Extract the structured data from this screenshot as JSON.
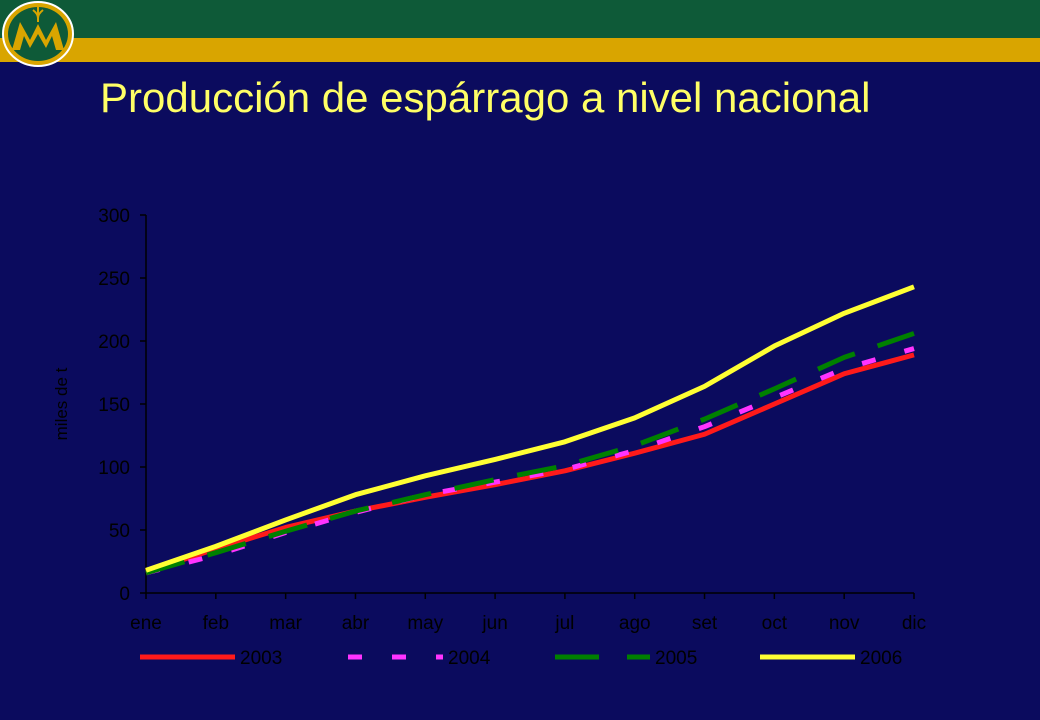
{
  "header": {
    "title": "Producción de espárrago a nivel nacional",
    "logo": "wheat-logo-icon",
    "colors": {
      "band_top": "#0e5a38",
      "band_gold": "#d9a500",
      "background": "#0b0b5e",
      "title": "#ffff66"
    }
  },
  "chart_data": {
    "type": "line",
    "categories": [
      "ene",
      "feb",
      "mar",
      "abr",
      "may",
      "jun",
      "jul",
      "ago",
      "set",
      "oct",
      "nov",
      "dic"
    ],
    "ylabel": "miles de t",
    "ylim": [
      0,
      300
    ],
    "yticks": [
      "0",
      "50",
      "100",
      "150",
      "200",
      "250",
      "300"
    ],
    "grid": false,
    "legend_position": "bottom",
    "series": [
      {
        "name": "2003",
        "color": "#ff1a1a",
        "style": "solid",
        "values": [
          17,
          35,
          52,
          65,
          76,
          86,
          97,
          111,
          126,
          150,
          174,
          189
        ]
      },
      {
        "name": "2004",
        "color": "#ff33ff",
        "style": "dashed",
        "values": [
          16,
          30,
          48,
          64,
          78,
          88,
          98,
          113,
          132,
          155,
          178,
          194
        ]
      },
      {
        "name": "2005",
        "color": "#008000",
        "style": "dashed",
        "values": [
          16,
          32,
          49,
          65,
          78,
          90,
          101,
          117,
          138,
          162,
          187,
          206
        ]
      },
      {
        "name": "2006",
        "color": "#ffff33",
        "style": "solid",
        "values": [
          18,
          37,
          58,
          78,
          93,
          106,
          120,
          139,
          164,
          196,
          222,
          243
        ]
      }
    ]
  }
}
